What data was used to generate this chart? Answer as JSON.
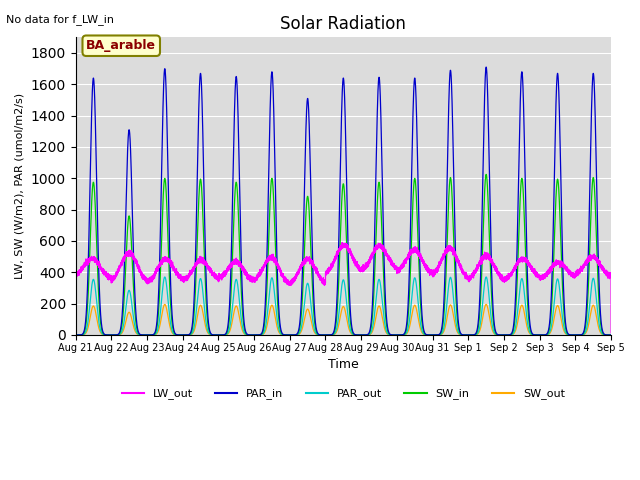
{
  "title": "Solar Radiation",
  "note": "No data for f_LW_in",
  "legend_box_label": "BA_arable",
  "xlabel": "Time",
  "ylabel": "LW, SW (W/m2), PAR (umol/m2/s)",
  "ylim": [
    0,
    1900
  ],
  "yticks": [
    0,
    200,
    400,
    600,
    800,
    1000,
    1200,
    1400,
    1600,
    1800
  ],
  "colors": {
    "LW_out": "#ff00ff",
    "PAR_in": "#0000cc",
    "PAR_out": "#00cccc",
    "SW_in": "#00cc00",
    "SW_out": "#ffaa00"
  },
  "background_color": "#dcdcdc",
  "n_days": 15,
  "par_in_peaks": [
    1640,
    1310,
    1700,
    1670,
    1650,
    1680,
    1510,
    1640,
    1645,
    1640,
    1690,
    1710,
    1680,
    1670,
    1670
  ],
  "sw_in_peaks": [
    975,
    760,
    1000,
    995,
    975,
    1000,
    885,
    965,
    975,
    1000,
    1005,
    1025,
    1000,
    995,
    1005
  ],
  "sw_out_peaks": [
    185,
    145,
    195,
    190,
    185,
    190,
    165,
    182,
    185,
    190,
    192,
    195,
    190,
    188,
    190
  ],
  "par_out_peaks": [
    355,
    285,
    370,
    360,
    355,
    365,
    330,
    352,
    355,
    365,
    368,
    370,
    360,
    358,
    362
  ],
  "lw_base": 350,
  "lw_peaks": [
    480,
    510,
    480,
    490,
    480,
    490,
    470,
    570,
    580,
    555,
    550,
    490,
    480,
    475,
    510
  ],
  "lw_night_vals": [
    370,
    345,
    340,
    335,
    335,
    330,
    330,
    395,
    400,
    380,
    365,
    355,
    355,
    350,
    365
  ]
}
